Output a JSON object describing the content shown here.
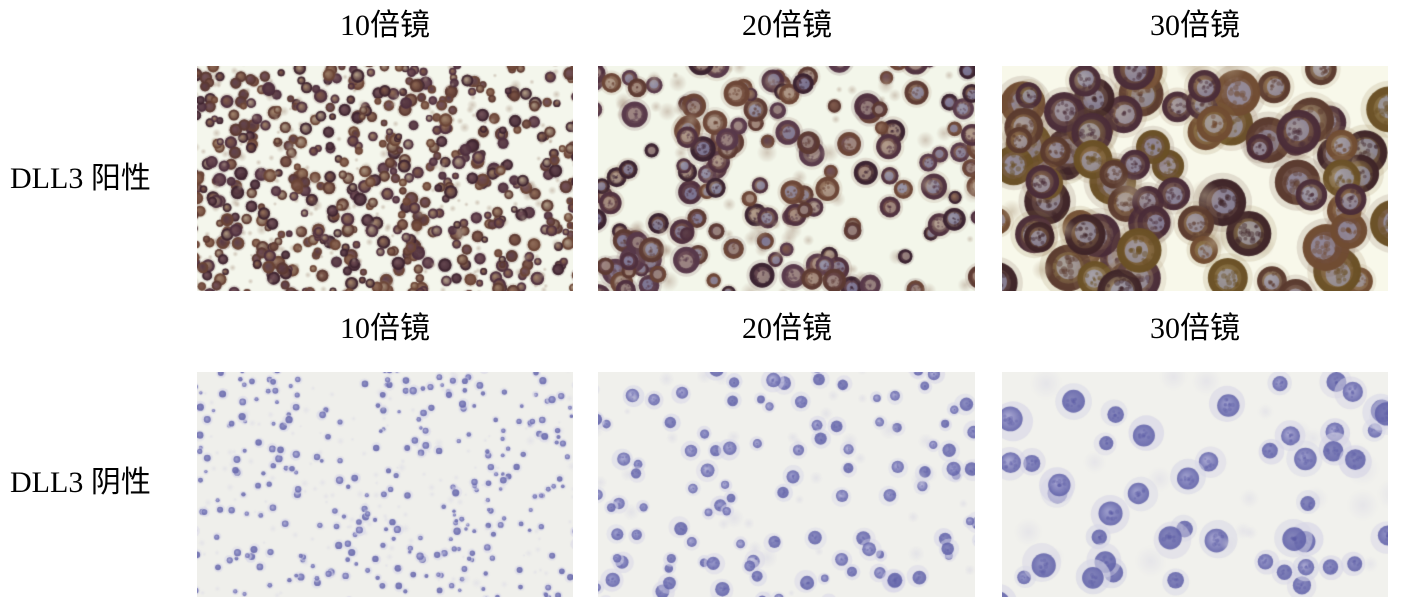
{
  "page": {
    "background": "#ffffff",
    "text_color": "#000000"
  },
  "figure": {
    "description_type": "immunohistochemistry micrograph panel grid",
    "rows": [
      {
        "label": "DLL3 阳性",
        "panels": [
          {
            "magnification": "10倍镜",
            "render": {
              "style": "positive",
              "seed": 7,
              "bg": "#f4f6ec",
              "count": 820,
              "rmin": 3.2,
              "rmax": 6.8,
              "rims": [
                "#4f2f3e",
                "#5d3a32",
                "#3f2430",
                "#6b4536"
              ],
              "bodies": [
                "#8a6450",
                "#7a5244",
                "#9a7a62",
                "#6d4a52",
                "#a8917c",
                "#5c3c46"
              ],
              "inner": "#c6b4a4",
              "nucleus": "#9aa4d0",
              "nucleus_chance": 0.12,
              "faint": "#b3a08f",
              "faint_chance": 0.3
            }
          },
          {
            "magnification": "20倍镜",
            "render": {
              "style": "positive",
              "seed": 13,
              "bg": "#f3f6ea",
              "count": 215,
              "rmin": 6.5,
              "rmax": 13.5,
              "rims": [
                "#4f2f3e",
                "#5d3a32",
                "#3a2230",
                "#6b4536",
                "#57384a"
              ],
              "bodies": [
                "#8a6450",
                "#7a5244",
                "#9a7a62",
                "#6d4a52",
                "#9c8474",
                "#5c3c46"
              ],
              "inner": "#c2b2a6",
              "nucleus": "#98a2ce",
              "nucleus_chance": 0.45,
              "faint": "#b3a08f",
              "faint_chance": 0.28
            }
          },
          {
            "magnification": "30倍镜",
            "render": {
              "style": "positive",
              "seed": 21,
              "bg": "#f8f8ea",
              "count": 100,
              "rmin": 13,
              "rmax": 24,
              "rims": [
                "#5a3a2e",
                "#4a2c38",
                "#6a5026",
                "#714c32",
                "#3e2428"
              ],
              "bodies": [
                "#8c6c4e",
                "#97764f",
                "#7c5e50",
                "#8d7445",
                "#a08a6a",
                "#6e4e46"
              ],
              "inner": "#b9bdd6",
              "nucleus": "#a7aed6",
              "nucleus_chance": 0.8,
              "faint": "#b9a88e",
              "faint_chance": 0.18
            }
          }
        ]
      },
      {
        "label": "DLL3 阴性",
        "panels": [
          {
            "magnification": "10倍镜",
            "render": {
              "style": "negative",
              "seed": 5,
              "bg": "#efefeb",
              "count": 470,
              "rmin": 2.6,
              "rmax": 6.0,
              "nuclei": [
                "#8788c4",
                "#7576b6",
                "#9897cc",
                "#6a6bae"
              ],
              "dark": "#5b5ca6",
              "cyto": "#d8d7e8",
              "faint": "#dcdbe6",
              "faint_chance": 0.34
            }
          },
          {
            "magnification": "20倍镜",
            "render": {
              "style": "negative",
              "seed": 9,
              "bg": "#f0f0ec",
              "count": 150,
              "rmin": 6,
              "rmax": 12,
              "nuclei": [
                "#8788c4",
                "#7576b6",
                "#9897cc",
                "#6a6bae",
                "#a3a3d2"
              ],
              "dark": "#5b5ca6",
              "cyto": "#d8d7e8",
              "faint": "#d9d8e4",
              "faint_chance": 0.3
            }
          },
          {
            "magnification": "30倍镜",
            "render": {
              "style": "negative",
              "seed": 17,
              "bg": "#f1f1ed",
              "count": 68,
              "rmin": 11,
              "rmax": 20,
              "nuclei": [
                "#8687c2",
                "#7475b6",
                "#9695ca",
                "#6b6cae"
              ],
              "dark": "#5b5ca6",
              "cyto": "#d6d5e6",
              "faint": "#dddce6",
              "faint_chance": 0.26
            }
          }
        ]
      }
    ]
  }
}
